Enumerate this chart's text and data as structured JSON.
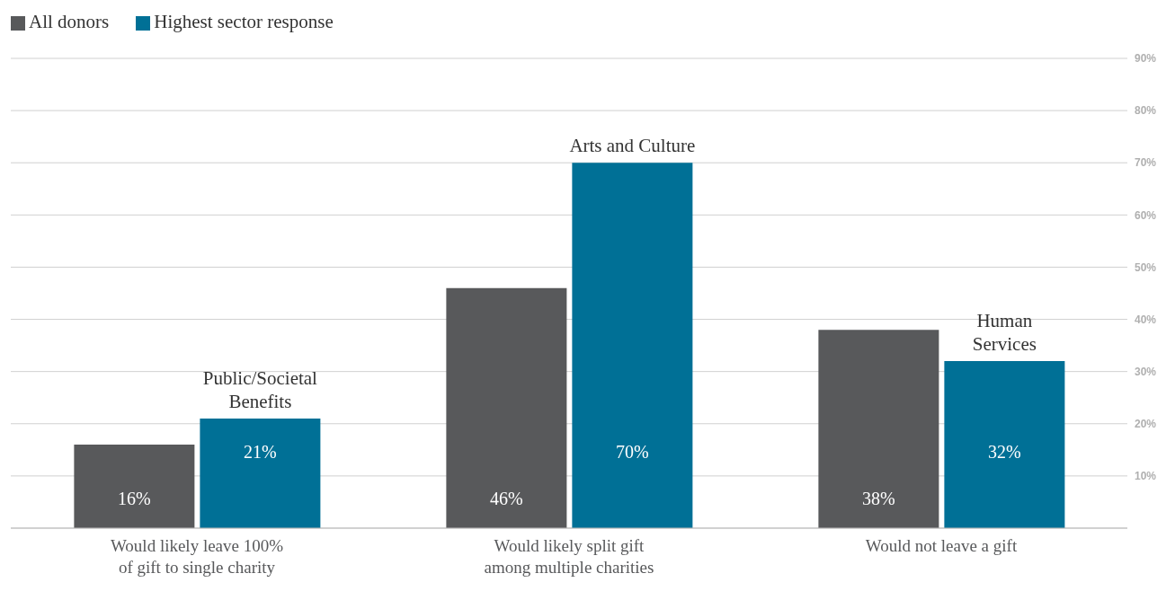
{
  "chart_data": {
    "type": "bar",
    "categories": [
      "Would likely leave 100% of gift to single charity",
      "Would likely split gift among multiple charities",
      "Would not leave a gift"
    ],
    "series": [
      {
        "name": "All donors",
        "color": "#58595b",
        "values": [
          16,
          46,
          38
        ],
        "value_labels": [
          "16%",
          "46%",
          "38%"
        ]
      },
      {
        "name": "Highest sector response",
        "color": "#007096",
        "values": [
          21,
          70,
          32
        ],
        "value_labels": [
          "21%",
          "70%",
          "32%"
        ]
      }
    ],
    "annotations": [
      {
        "text": "Public/Societal Benefits",
        "x": "Would likely leave 100% of gift to single charity",
        "y": 21
      },
      {
        "text": "Arts and Culture",
        "x": "Would likely split gift among multiple charities",
        "y": 70
      },
      {
        "text": "Human Services",
        "x": "Would not leave a gift",
        "y": 32
      }
    ],
    "ylim": [
      0,
      90
    ],
    "yticks": [
      {
        "value": 10,
        "label": "10%"
      },
      {
        "value": 20,
        "label": "20%"
      },
      {
        "value": 30,
        "label": "30%"
      },
      {
        "value": 40,
        "label": "40%"
      },
      {
        "value": 50,
        "label": "50%"
      },
      {
        "value": 60,
        "label": "60%"
      },
      {
        "value": 70,
        "label": "70%"
      },
      {
        "value": 80,
        "label": "80%"
      },
      {
        "value": 90,
        "label": "90%"
      }
    ],
    "grid": "y",
    "legend": "top left"
  }
}
